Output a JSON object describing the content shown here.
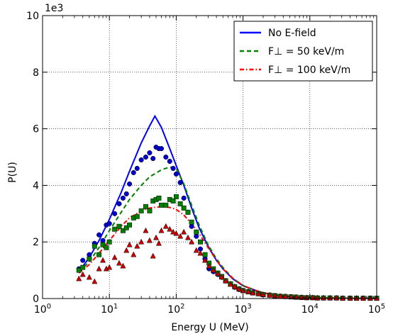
{
  "chart_data": {
    "type": "line",
    "xlabel": "Energy U (MeV)",
    "ylabel": "P(U)",
    "y_multiplier_label": "1e3",
    "x_scale": "log",
    "xlim": [
      1,
      100000
    ],
    "ylim": [
      0,
      10
    ],
    "grid": true,
    "legend_position": "top-right",
    "x_tick_labels": [
      {
        "base": "10",
        "exp": "0",
        "value": 1
      },
      {
        "base": "10",
        "exp": "1",
        "value": 10
      },
      {
        "base": "10",
        "exp": "2",
        "value": 100
      },
      {
        "base": "10",
        "exp": "3",
        "value": 1000
      },
      {
        "base": "10",
        "exp": "4",
        "value": 10000
      },
      {
        "base": "10",
        "exp": "5",
        "value": 100000
      }
    ],
    "y_tick_labels": [
      "0",
      "2",
      "4",
      "6",
      "8",
      "10"
    ],
    "y_ticks": [
      0,
      2,
      4,
      6,
      8,
      10
    ],
    "series": [
      {
        "name": "No E-field",
        "style": "solid",
        "color": "#0000ff",
        "x": [
          3.5,
          5,
          7,
          10,
          15,
          20,
          30,
          40,
          48,
          60,
          80,
          100,
          130,
          170,
          220,
          300,
          400,
          500,
          700,
          1000,
          1500,
          2000,
          3000,
          5000,
          10000,
          20000,
          50000,
          100000
        ],
        "y": [
          0.95,
          1.45,
          2.05,
          2.8,
          3.75,
          4.5,
          5.5,
          6.1,
          6.45,
          6.05,
          5.3,
          4.7,
          4.0,
          3.2,
          2.5,
          1.85,
          1.35,
          1.05,
          0.7,
          0.45,
          0.3,
          0.2,
          0.13,
          0.07,
          0.03,
          0.02,
          0.01,
          0.01
        ]
      },
      {
        "name": "F⊥ = 50 keV/m",
        "style": "dashed",
        "color": "#008000",
        "x": [
          3.5,
          5,
          7,
          10,
          15,
          20,
          30,
          40,
          60,
          80,
          100,
          130,
          170,
          220,
          300,
          400,
          500,
          700,
          1000,
          1500,
          2000,
          3000,
          5000,
          10000,
          20000,
          50000,
          100000
        ],
        "y": [
          0.95,
          1.3,
          1.8,
          2.4,
          3.05,
          3.5,
          4.0,
          4.3,
          4.55,
          4.65,
          4.6,
          4.05,
          3.3,
          2.6,
          1.9,
          1.4,
          1.1,
          0.72,
          0.46,
          0.3,
          0.2,
          0.13,
          0.07,
          0.03,
          0.02,
          0.01,
          0.01
        ]
      },
      {
        "name": "F⊥ = 100 keV/m",
        "style": "dashdot",
        "color": "#ff0000",
        "x": [
          3.5,
          5,
          7,
          10,
          15,
          20,
          30,
          40,
          60,
          80,
          100,
          130,
          170,
          220,
          300,
          400,
          500,
          700,
          1000,
          1500,
          2000,
          3000,
          5000,
          10000,
          20000,
          50000,
          100000
        ],
        "y": [
          0.9,
          1.2,
          1.6,
          2.05,
          2.55,
          2.85,
          3.1,
          3.2,
          3.25,
          3.22,
          3.15,
          2.95,
          2.65,
          2.3,
          1.8,
          1.35,
          1.05,
          0.72,
          0.46,
          0.3,
          0.2,
          0.13,
          0.07,
          0.03,
          0.02,
          0.01,
          0.01
        ]
      }
    ],
    "scatter_series": [
      {
        "marker": "circle",
        "color": "#0000cc",
        "x": [
          3.5,
          4,
          5,
          6,
          7,
          8,
          9,
          10,
          12,
          14,
          16,
          18,
          20,
          23,
          26,
          30,
          35,
          40,
          45,
          50,
          55,
          60,
          70,
          80,
          90,
          100,
          115,
          130,
          150,
          170,
          200,
          230,
          270,
          310,
          360,
          420,
          480,
          550,
          650,
          750,
          870,
          1000,
          1200,
          1400,
          1700,
          2000,
          2500,
          3000,
          3600,
          4300,
          5200,
          6200,
          7500,
          9000,
          11000,
          13000,
          16000,
          20000,
          25000,
          31000,
          40000,
          50000,
          63000,
          80000,
          100000
        ],
        "y": [
          1.05,
          1.35,
          1.55,
          1.95,
          2.25,
          2.05,
          2.6,
          2.65,
          3.0,
          3.35,
          3.55,
          3.7,
          4.05,
          4.45,
          4.6,
          4.9,
          5.0,
          5.15,
          4.95,
          5.35,
          5.3,
          5.3,
          5.0,
          4.85,
          4.6,
          4.4,
          4.1,
          3.55,
          3.05,
          2.55,
          2.2,
          1.75,
          1.4,
          1.05,
          0.95,
          0.85,
          0.75,
          0.62,
          0.52,
          0.4,
          0.32,
          0.28,
          0.25,
          0.2,
          0.17,
          0.14,
          0.12,
          0.1,
          0.08,
          0.07,
          0.06,
          0.05,
          0.04,
          0.03,
          0.03,
          0.02,
          0.02,
          0.02,
          0.02,
          0.01,
          0.01,
          0.01,
          0.01,
          0.01,
          0.01
        ]
      },
      {
        "marker": "square",
        "color": "#008000",
        "x": [
          3.5,
          4,
          5,
          6,
          7,
          8,
          9,
          10,
          12,
          14,
          16,
          18,
          20,
          23,
          26,
          30,
          35,
          40,
          45,
          50,
          55,
          60,
          70,
          80,
          90,
          100,
          115,
          130,
          150,
          170,
          200,
          230,
          270,
          310,
          360,
          420,
          480,
          550,
          650,
          750,
          870,
          1000,
          1200,
          1400,
          1700,
          2000,
          2500,
          3000,
          3600,
          4300,
          5200,
          6200,
          7500,
          9000,
          11000,
          13000,
          16000,
          20000,
          25000,
          31000,
          40000,
          50000,
          63000,
          80000,
          100000
        ],
        "y": [
          1.0,
          1.1,
          1.4,
          1.85,
          1.55,
          1.9,
          1.8,
          2.0,
          2.45,
          2.55,
          2.4,
          2.5,
          2.6,
          2.85,
          2.9,
          3.1,
          3.25,
          3.1,
          3.45,
          3.5,
          3.55,
          3.3,
          3.3,
          3.5,
          3.45,
          3.6,
          3.35,
          3.2,
          3.05,
          2.7,
          2.35,
          2.0,
          1.55,
          1.25,
          1.05,
          0.9,
          0.78,
          0.63,
          0.52,
          0.42,
          0.34,
          0.28,
          0.24,
          0.2,
          0.17,
          0.14,
          0.12,
          0.1,
          0.08,
          0.07,
          0.06,
          0.05,
          0.04,
          0.03,
          0.03,
          0.02,
          0.02,
          0.02,
          0.02,
          0.01,
          0.01,
          0.01,
          0.01,
          0.01,
          0.01
        ]
      },
      {
        "marker": "triangle",
        "color": "#cc0000",
        "x": [
          3.5,
          4,
          5,
          6,
          7,
          8,
          9,
          10,
          12,
          14,
          16,
          18,
          20,
          23,
          26,
          30,
          35,
          40,
          45,
          50,
          55,
          60,
          70,
          80,
          90,
          100,
          115,
          130,
          150,
          170,
          200,
          230,
          270,
          310,
          360,
          420,
          480,
          550,
          650,
          750,
          870,
          1000,
          1200,
          1400,
          1700,
          2000,
          2500,
          3000,
          3600,
          4300,
          5200,
          6200,
          7500,
          9000,
          11000,
          13000,
          16000,
          20000,
          25000,
          31000,
          40000,
          50000,
          63000,
          80000,
          100000
        ],
        "y": [
          0.7,
          0.85,
          0.75,
          0.6,
          1.05,
          1.35,
          1.05,
          1.1,
          1.45,
          1.25,
          1.15,
          1.7,
          1.9,
          1.55,
          1.85,
          2.0,
          2.4,
          2.05,
          1.5,
          2.15,
          1.95,
          2.4,
          2.55,
          2.45,
          2.35,
          2.3,
          2.2,
          2.35,
          2.15,
          2.0,
          1.7,
          1.6,
          1.35,
          1.15,
          1.0,
          0.88,
          0.76,
          0.62,
          0.5,
          0.42,
          0.34,
          0.28,
          0.24,
          0.2,
          0.17,
          0.14,
          0.12,
          0.1,
          0.08,
          0.07,
          0.06,
          0.05,
          0.04,
          0.03,
          0.03,
          0.02,
          0.02,
          0.02,
          0.02,
          0.01,
          0.01,
          0.01,
          0.01,
          0.01,
          0.01
        ]
      }
    ]
  }
}
